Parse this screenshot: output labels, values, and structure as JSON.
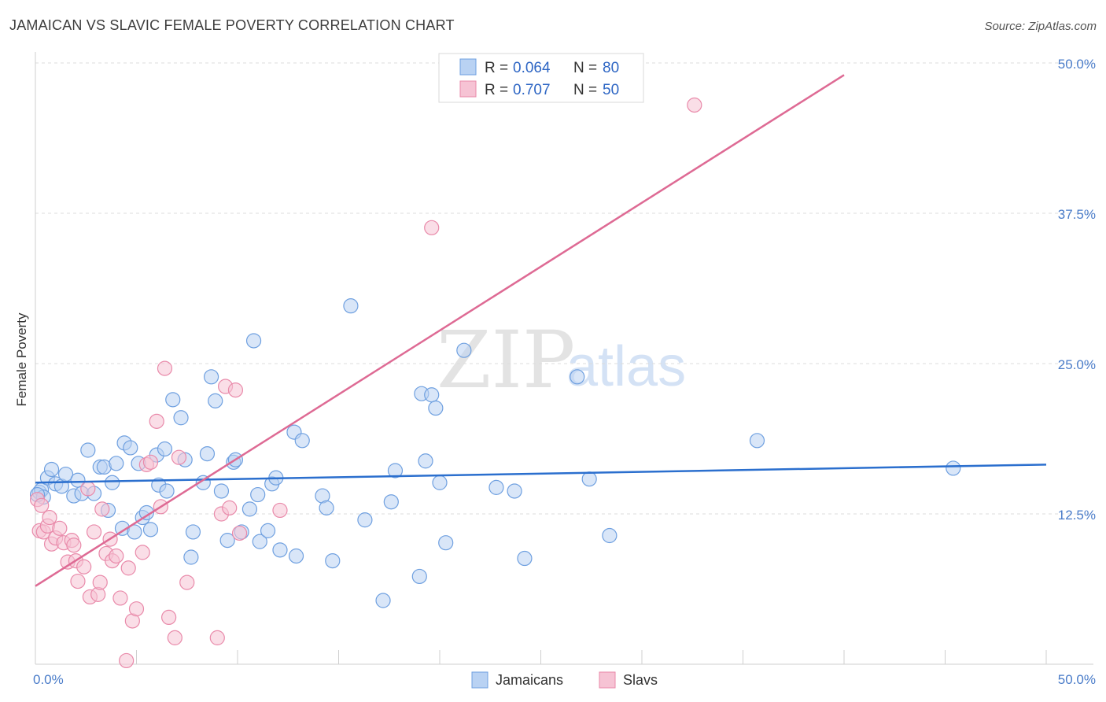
{
  "title": "JAMAICAN VS SLAVIC FEMALE POVERTY CORRELATION CHART",
  "source": "Source: ZipAtlas.com",
  "chart_data": {
    "type": "scatter",
    "xlabel": "",
    "ylabel": "Female Poverty",
    "xlim": [
      0,
      50
    ],
    "ylim": [
      0,
      50
    ],
    "x_tick_labels": [
      "0.0%",
      "50.0%"
    ],
    "y_ticks": [
      12.5,
      25.0,
      37.5,
      50.0
    ],
    "y_tick_labels": [
      "12.5%",
      "25.0%",
      "37.5%",
      "50.0%"
    ],
    "grid": true,
    "legend": {
      "placement": "top-center",
      "entries": [
        {
          "r_label": "R =",
          "r_value": "0.064",
          "n_label": "N =",
          "n_value": "80"
        },
        {
          "r_label": "R =",
          "r_value": "0.707",
          "n_label": "N =",
          "n_value": "50"
        }
      ]
    },
    "series": [
      {
        "name": "Jamaicans",
        "color": "#6fa0e0",
        "fill": "#b9d2f3",
        "trend_color": "#2b6fce",
        "trend": {
          "x": [
            0,
            50
          ],
          "y": [
            15.1,
            16.6
          ]
        },
        "points": [
          [
            0.2,
            14.3
          ],
          [
            0.3,
            14.5
          ],
          [
            0.4,
            13.9
          ],
          [
            0.6,
            15.5
          ],
          [
            0.8,
            16.2
          ],
          [
            1.0,
            15.0
          ],
          [
            1.3,
            14.8
          ],
          [
            1.5,
            15.8
          ],
          [
            1.9,
            14.0
          ],
          [
            2.1,
            15.3
          ],
          [
            2.3,
            14.2
          ],
          [
            2.6,
            17.8
          ],
          [
            2.9,
            14.2
          ],
          [
            3.2,
            16.4
          ],
          [
            3.4,
            16.4
          ],
          [
            3.6,
            12.8
          ],
          [
            3.8,
            15.1
          ],
          [
            4.0,
            16.7
          ],
          [
            4.3,
            11.3
          ],
          [
            4.4,
            18.4
          ],
          [
            4.7,
            18.0
          ],
          [
            4.9,
            11.0
          ],
          [
            5.1,
            16.7
          ],
          [
            5.3,
            12.2
          ],
          [
            5.5,
            12.6
          ],
          [
            5.7,
            11.2
          ],
          [
            6.0,
            17.4
          ],
          [
            6.1,
            14.9
          ],
          [
            6.4,
            17.9
          ],
          [
            6.5,
            14.4
          ],
          [
            6.8,
            22.0
          ],
          [
            7.2,
            20.5
          ],
          [
            7.4,
            17.0
          ],
          [
            7.7,
            8.9
          ],
          [
            7.8,
            11.0
          ],
          [
            8.3,
            15.1
          ],
          [
            8.5,
            17.5
          ],
          [
            8.7,
            23.9
          ],
          [
            8.9,
            21.9
          ],
          [
            9.2,
            14.4
          ],
          [
            9.5,
            10.3
          ],
          [
            9.8,
            16.8
          ],
          [
            9.9,
            17.0
          ],
          [
            10.2,
            11.0
          ],
          [
            10.6,
            12.9
          ],
          [
            10.8,
            26.9
          ],
          [
            11.0,
            14.1
          ],
          [
            11.1,
            10.2
          ],
          [
            11.5,
            11.1
          ],
          [
            11.7,
            15.0
          ],
          [
            11.9,
            15.5
          ],
          [
            12.1,
            9.5
          ],
          [
            12.8,
            19.3
          ],
          [
            12.9,
            9.0
          ],
          [
            13.2,
            18.6
          ],
          [
            14.2,
            14.0
          ],
          [
            14.4,
            13.0
          ],
          [
            14.7,
            8.6
          ],
          [
            15.6,
            29.8
          ],
          [
            16.3,
            12.0
          ],
          [
            17.2,
            5.3
          ],
          [
            17.6,
            13.5
          ],
          [
            17.8,
            16.1
          ],
          [
            19.0,
            7.3
          ],
          [
            19.1,
            22.5
          ],
          [
            19.3,
            16.9
          ],
          [
            19.6,
            22.4
          ],
          [
            19.8,
            21.3
          ],
          [
            20.0,
            15.1
          ],
          [
            20.3,
            10.1
          ],
          [
            21.2,
            26.1
          ],
          [
            22.8,
            14.7
          ],
          [
            23.7,
            14.4
          ],
          [
            24.2,
            8.8
          ],
          [
            26.8,
            23.9
          ],
          [
            27.4,
            15.4
          ],
          [
            28.4,
            10.7
          ],
          [
            35.7,
            18.6
          ],
          [
            45.4,
            16.3
          ],
          [
            0.1,
            14.1
          ]
        ]
      },
      {
        "name": "Slavs",
        "color": "#e98aaa",
        "fill": "#f6c3d4",
        "trend_color": "#de6a94",
        "trend": {
          "x": [
            0,
            40
          ],
          "y": [
            6.5,
            49.0
          ]
        },
        "points": [
          [
            0.1,
            13.7
          ],
          [
            0.2,
            11.1
          ],
          [
            0.4,
            11.0
          ],
          [
            0.6,
            11.5
          ],
          [
            0.7,
            12.2
          ],
          [
            0.8,
            10.0
          ],
          [
            1.0,
            10.5
          ],
          [
            1.2,
            11.3
          ],
          [
            1.4,
            10.1
          ],
          [
            1.6,
            8.5
          ],
          [
            1.8,
            10.3
          ],
          [
            2.0,
            8.6
          ],
          [
            2.1,
            6.9
          ],
          [
            2.4,
            8.1
          ],
          [
            2.6,
            14.6
          ],
          [
            2.7,
            5.6
          ],
          [
            2.9,
            11.0
          ],
          [
            3.1,
            5.8
          ],
          [
            3.2,
            6.8
          ],
          [
            3.3,
            12.9
          ],
          [
            3.5,
            9.2
          ],
          [
            3.7,
            10.4
          ],
          [
            3.8,
            8.6
          ],
          [
            4.0,
            9.0
          ],
          [
            4.2,
            5.5
          ],
          [
            4.5,
            0.3
          ],
          [
            4.6,
            8.0
          ],
          [
            4.8,
            3.6
          ],
          [
            5.0,
            4.6
          ],
          [
            5.3,
            9.3
          ],
          [
            5.5,
            16.6
          ],
          [
            5.7,
            16.8
          ],
          [
            6.0,
            20.2
          ],
          [
            6.2,
            13.1
          ],
          [
            6.4,
            24.6
          ],
          [
            6.6,
            3.9
          ],
          [
            6.9,
            2.2
          ],
          [
            7.1,
            17.2
          ],
          [
            7.5,
            6.8
          ],
          [
            9.0,
            2.2
          ],
          [
            9.2,
            12.5
          ],
          [
            9.4,
            23.1
          ],
          [
            9.6,
            13.0
          ],
          [
            9.9,
            22.8
          ],
          [
            10.1,
            10.9
          ],
          [
            12.1,
            12.8
          ],
          [
            19.6,
            36.3
          ],
          [
            32.6,
            46.5
          ],
          [
            0.3,
            13.2
          ],
          [
            1.9,
            9.9
          ]
        ]
      }
    ],
    "bottom_legend": [
      "Jamaicans",
      "Slavs"
    ]
  },
  "watermark": {
    "zip": "ZIP",
    "atlas": "atlas"
  }
}
